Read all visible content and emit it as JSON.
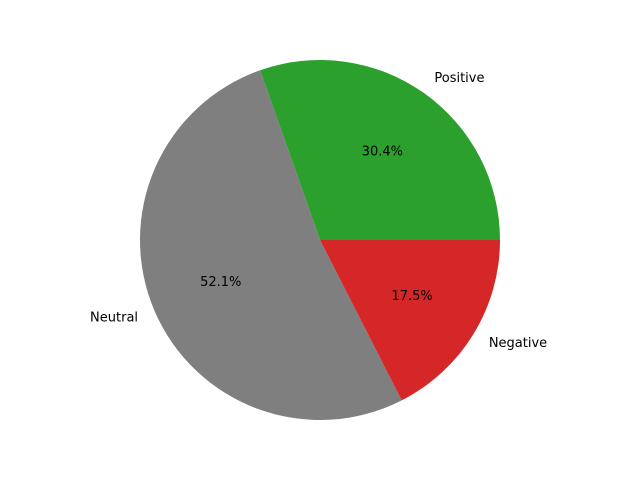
{
  "chart_data": {
    "type": "pie",
    "title": "",
    "start_angle_deg": 0,
    "direction": "counterclockwise",
    "slices": [
      {
        "label": "Positive",
        "value": 30.4,
        "pct_label": "30.4%",
        "color": "#2ca02c"
      },
      {
        "label": "Neutral",
        "value": 52.1,
        "pct_label": "52.1%",
        "color": "#7f7f7f"
      },
      {
        "label": "Negative",
        "value": 17.5,
        "pct_label": "17.5%",
        "color": "#d62728"
      }
    ]
  }
}
